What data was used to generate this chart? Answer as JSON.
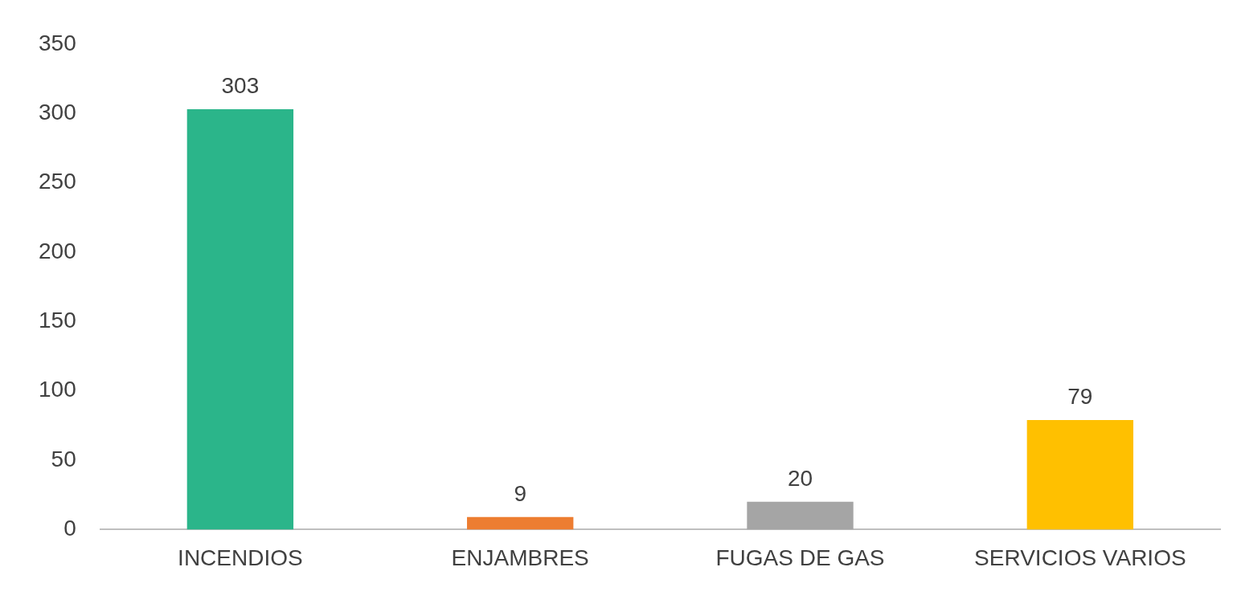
{
  "chart_data": {
    "type": "bar",
    "categories": [
      "INCENDIOS",
      "ENJAMBRES",
      "FUGAS DE GAS",
      "SERVICIOS VARIOS"
    ],
    "values": [
      303,
      9,
      20,
      79
    ],
    "colors": [
      "#2bb58a",
      "#ed7d31",
      "#a5a5a5",
      "#ffc000"
    ],
    "ylim": [
      0,
      350
    ],
    "yticks": [
      0,
      50,
      100,
      150,
      200,
      250,
      300,
      350
    ],
    "grid": false,
    "legend": false,
    "data_labels": true
  }
}
